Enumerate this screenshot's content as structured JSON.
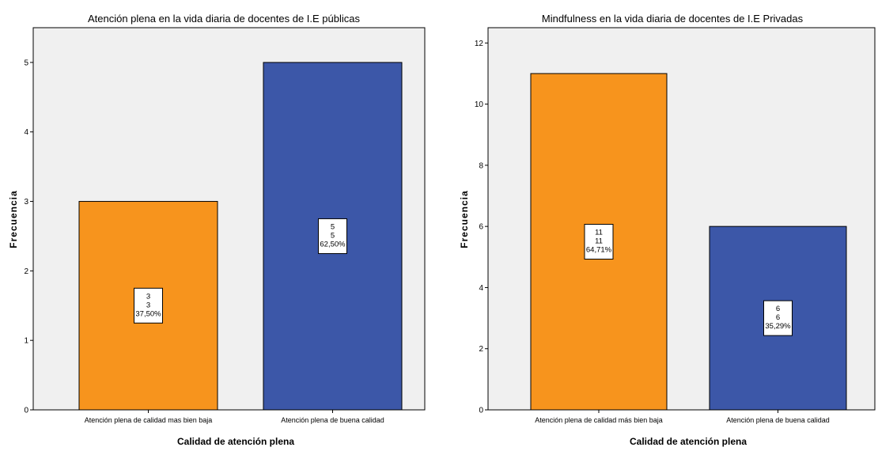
{
  "colors": {
    "plot_bg": "#F0F0F0",
    "bar_orange": "#F7941D",
    "bar_blue": "#3C57A8",
    "label_box": "#FFFFFF"
  },
  "chart_data": [
    {
      "type": "bar",
      "title": "Atención plena en la vida diaria de docentes de I.E públicas",
      "xlabel": "Calidad de atención plena",
      "ylabel": "Frecuencia",
      "categories": [
        "Atención plena de calidad mas bien baja",
        "Atención plena de buena calidad"
      ],
      "values": [
        3,
        5
      ],
      "data_labels": [
        [
          "3",
          "3",
          "37,50%"
        ],
        [
          "5",
          "5",
          "62,50%"
        ]
      ],
      "bar_colors": [
        "#F7941D",
        "#3C57A8"
      ],
      "ylim": [
        0,
        5.5
      ],
      "yticks": [
        0,
        1,
        2,
        3,
        4,
        5
      ],
      "grid": false
    },
    {
      "type": "bar",
      "title": "Mindfulness en la vida diaria de docentes de I.E Privadas",
      "xlabel": "Calidad de atención plena",
      "ylabel": "Frecuencia",
      "categories": [
        "Atención plena de calidad más bien baja",
        "Atención plena de buena calidad"
      ],
      "values": [
        11,
        6
      ],
      "data_labels": [
        [
          "11",
          "11",
          "64,71%"
        ],
        [
          "6",
          "6",
          "35,29%"
        ]
      ],
      "bar_colors": [
        "#F7941D",
        "#3C57A8"
      ],
      "ylim": [
        0,
        12.5
      ],
      "yticks": [
        0,
        2,
        4,
        6,
        8,
        10,
        12
      ],
      "grid": false
    }
  ]
}
